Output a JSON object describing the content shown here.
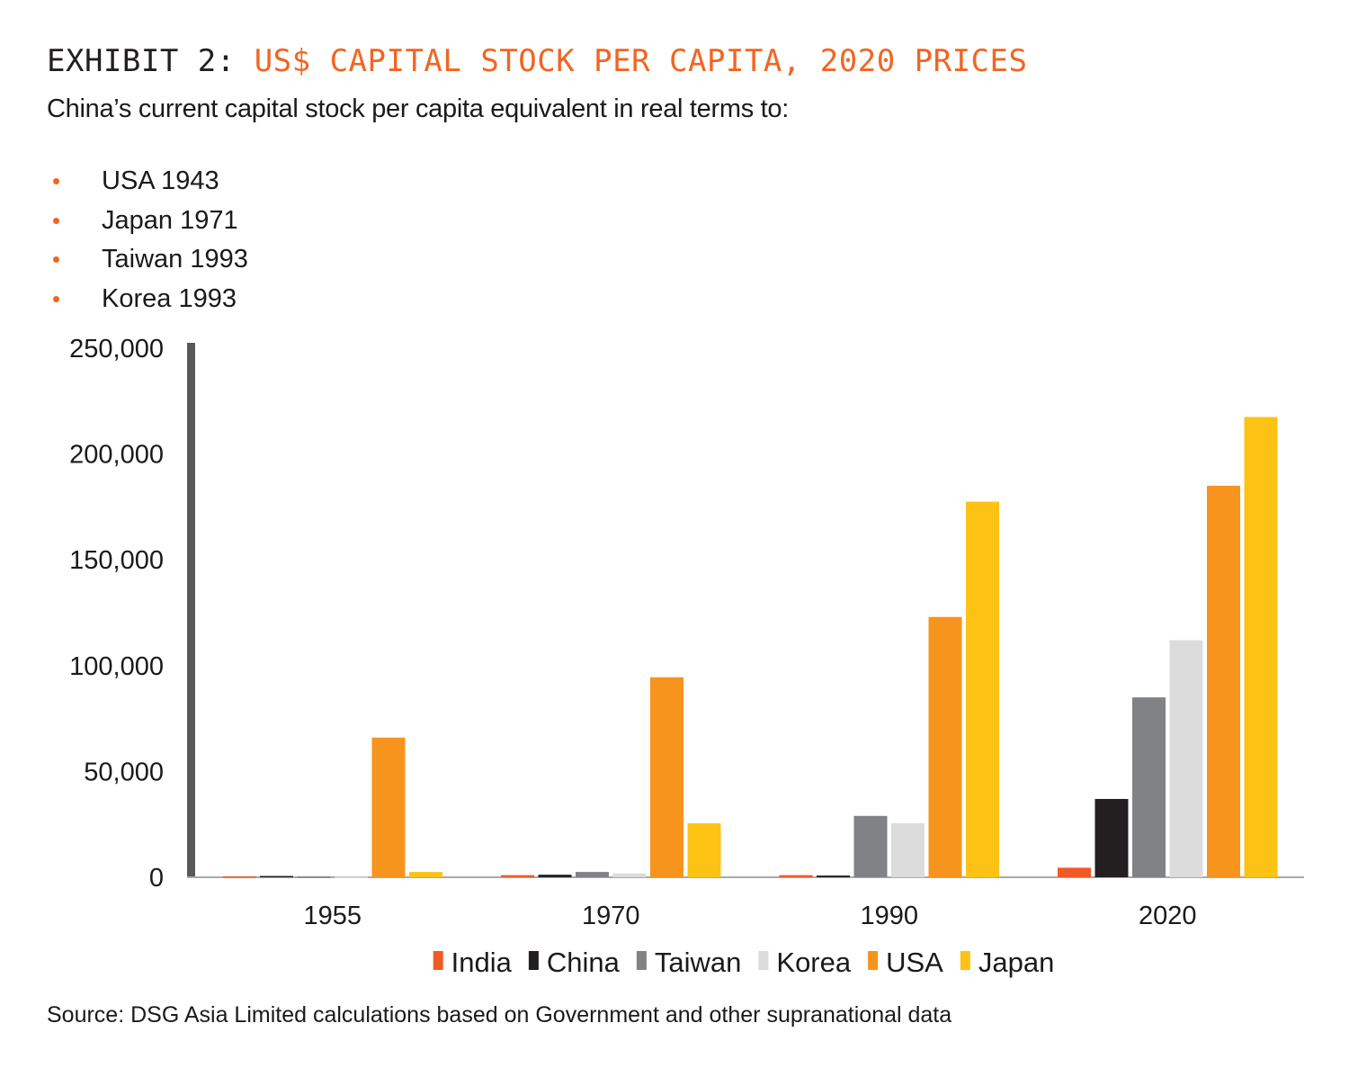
{
  "header": {
    "exhibit_label": "EXHIBIT 2:",
    "title": "US$ CAPITAL STOCK PER CAPITA, 2020 PRICES",
    "subtitle": "China’s current capital stock per capita equivalent in real terms to:",
    "bullets": [
      "USA 1943",
      "Japan 1971",
      "Taiwan 1993",
      "Korea 1993"
    ]
  },
  "source": "Source: DSG Asia Limited calculations based on Government and other supranational data",
  "colors": {
    "accent": "#f26522",
    "axis": "#58595b",
    "baseline": "#a7a9ac"
  },
  "chart_data": {
    "type": "bar",
    "categories": [
      "1955",
      "1970",
      "1990",
      "2020"
    ],
    "ylim": [
      0,
      250000
    ],
    "yticks": [
      0,
      50000,
      100000,
      150000,
      200000,
      250000
    ],
    "ytick_labels": [
      "0",
      "50,000",
      "100,000",
      "150,000",
      "200,000",
      "250,000"
    ],
    "legend_position": "bottom",
    "grid": false,
    "series": [
      {
        "name": "India",
        "color": "#f15a24",
        "values": [
          400,
          1000,
          1000,
          4500
        ]
      },
      {
        "name": "China",
        "color": "#231f20",
        "values": [
          600,
          1200,
          800,
          37000
        ]
      },
      {
        "name": "Taiwan",
        "color": "#808285",
        "values": [
          400,
          2500,
          29000,
          85000
        ]
      },
      {
        "name": "Korea",
        "color": "#dcdcdc",
        "values": [
          200,
          1800,
          25500,
          112000
        ]
      },
      {
        "name": "USA",
        "color": "#f7941d",
        "values": [
          66000,
          94500,
          123000,
          185000
        ]
      },
      {
        "name": "Japan",
        "color": "#fdc314",
        "values": [
          2500,
          25500,
          177500,
          217500
        ]
      }
    ]
  }
}
